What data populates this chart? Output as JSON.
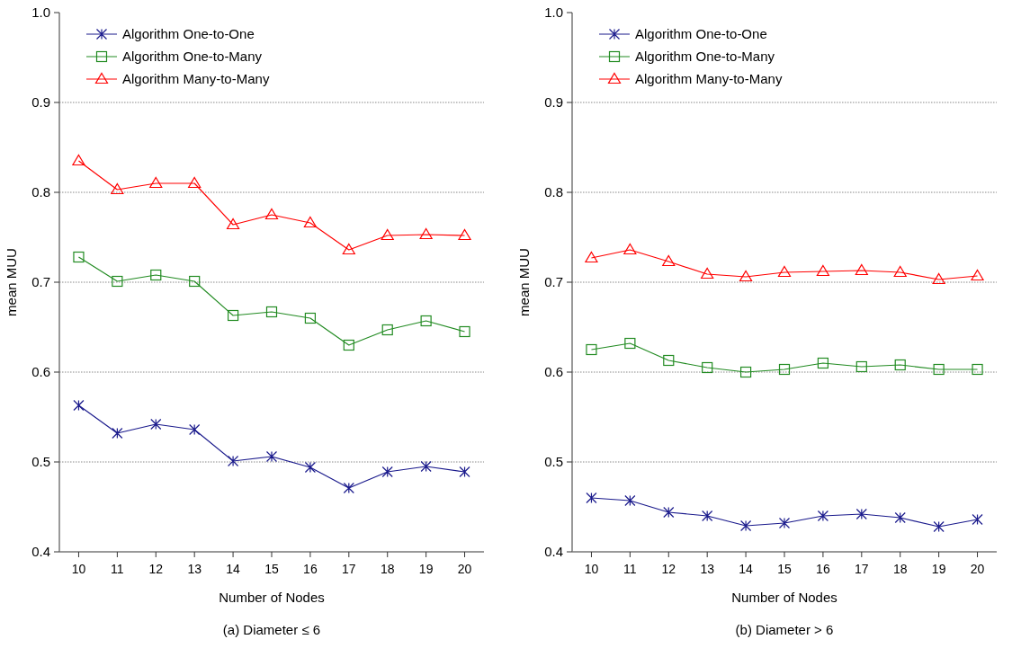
{
  "chart_data": [
    {
      "type": "line",
      "xlabel": "Number of Nodes",
      "ylabel": "mean MUU",
      "annotations": [
        "(a)  Diameter ≤ 6"
      ],
      "x": [
        10,
        11,
        12,
        13,
        14,
        15,
        16,
        17,
        18,
        19,
        20
      ],
      "xlim": [
        9.5,
        20.5
      ],
      "xticks": [
        10,
        11,
        12,
        13,
        14,
        15,
        16,
        17,
        18,
        19,
        20
      ],
      "ylim": [
        0.4,
        1.0
      ],
      "yticks": [
        0.4,
        0.5,
        0.6,
        0.7,
        0.8,
        0.9,
        {
          "value": 1.0,
          "label": "1.0"
        }
      ],
      "grid": "y",
      "legend": "top left",
      "line_style": "solid",
      "series": [
        {
          "name": "Algorithm One-to-One",
          "color": "#1a1a8c",
          "marker": "cross",
          "values": [
            0.563,
            0.532,
            0.542,
            0.536,
            0.501,
            0.506,
            0.494,
            0.471,
            0.489,
            0.495,
            0.489
          ]
        },
        {
          "name": "Algorithm One-to-Many",
          "color": "#228b22",
          "marker": "square",
          "values": [
            0.728,
            0.701,
            0.708,
            0.701,
            0.663,
            0.667,
            0.66,
            0.63,
            0.647,
            0.657,
            0.645
          ]
        },
        {
          "name": "Algorithm Many-to-Many",
          "color": "#ff0000",
          "marker": "triangle",
          "values": [
            0.835,
            0.803,
            0.81,
            0.81,
            0.764,
            0.775,
            0.766,
            0.736,
            0.752,
            0.753,
            0.752
          ]
        }
      ]
    },
    {
      "type": "line",
      "xlabel": "Number of Nodes",
      "ylabel": "mean MUU",
      "annotations": [
        "(b)  Diameter > 6"
      ],
      "x": [
        10,
        11,
        12,
        13,
        14,
        15,
        16,
        17,
        18,
        19,
        20
      ],
      "xlim": [
        9.5,
        20.5
      ],
      "xticks": [
        10,
        11,
        12,
        13,
        14,
        15,
        16,
        17,
        18,
        19,
        20
      ],
      "ylim": [
        0.4,
        1.0
      ],
      "yticks": [
        0.4,
        0.5,
        0.6,
        0.7,
        0.8,
        0.9,
        {
          "value": 1.0,
          "label": "1.0"
        }
      ],
      "grid": "y",
      "legend": "top left",
      "line_style": "solid",
      "series": [
        {
          "name": "Algorithm One-to-One",
          "color": "#1a1a8c",
          "marker": "cross",
          "values": [
            0.46,
            0.457,
            0.444,
            0.44,
            0.429,
            0.432,
            0.44,
            0.442,
            0.438,
            0.428,
            0.436
          ]
        },
        {
          "name": "Algorithm One-to-Many",
          "color": "#228b22",
          "marker": "square",
          "values": [
            0.625,
            0.632,
            0.613,
            0.605,
            0.6,
            0.603,
            0.61,
            0.606,
            0.608,
            0.603,
            0.603
          ]
        },
        {
          "name": "Algorithm Many-to-Many",
          "color": "#ff0000",
          "marker": "triangle",
          "values": [
            0.727,
            0.736,
            0.723,
            0.709,
            0.706,
            0.711,
            0.712,
            0.713,
            0.711,
            0.703,
            0.707
          ]
        }
      ]
    }
  ]
}
